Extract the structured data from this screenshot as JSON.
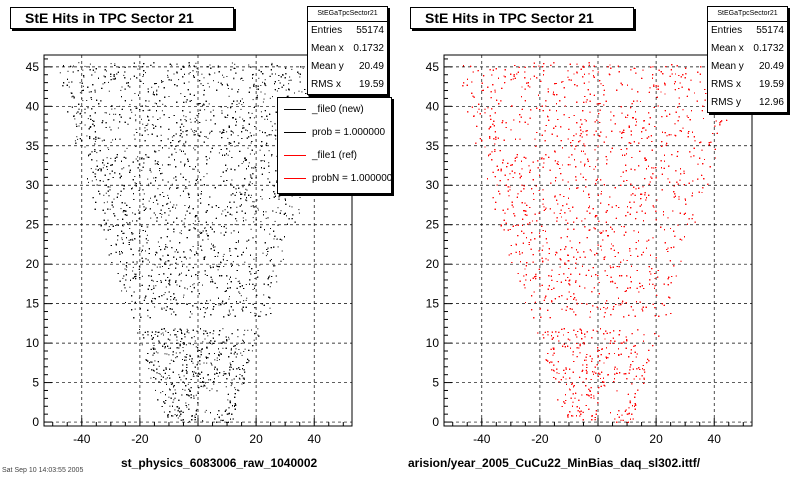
{
  "left": {
    "title": "StE Hits in TPC Sector 21",
    "stats": {
      "name": "StEGaTpcSector21",
      "rows": [
        {
          "label": "Entries",
          "value": "55174"
        },
        {
          "label": "Mean x",
          "value": "0.1732"
        },
        {
          "label": "Mean y",
          "value": "20.49"
        },
        {
          "label": "RMS x",
          "value": "19.59"
        }
      ]
    },
    "legend": [
      {
        "label": "_file0 (new)",
        "color": "#000000"
      },
      {
        "label": "prob = 1.000000",
        "color": "#000000"
      },
      {
        "label": "_file1 (ref)",
        "color": "#ff0000"
      },
      {
        "label": "probN = 1.000000",
        "color": "#ff0000"
      }
    ],
    "filename": "st_physics_6083006_raw_1040002"
  },
  "right": {
    "title": "StE Hits in TPC Sector 21",
    "stats": {
      "name": "StEGaTpcSector21",
      "rows": [
        {
          "label": "Entries",
          "value": "55174"
        },
        {
          "label": "Mean x",
          "value": "0.1732"
        },
        {
          "label": "Mean y",
          "value": "20.49"
        },
        {
          "label": "RMS x",
          "value": "19.59"
        },
        {
          "label": "RMS y",
          "value": "12.96"
        }
      ]
    },
    "filename": "arision/year_2005_CuCu22_MinBias_daq_sl302.ittf/"
  },
  "footer": "Sat Sep 10 14:03:55 2005",
  "chart_data": [
    {
      "type": "scatter",
      "title": "StE Hits in TPC Sector 21",
      "xlim": [
        -53,
        53
      ],
      "ylim": [
        -0.5,
        46.5
      ],
      "xticks": [
        -40,
        -20,
        0,
        20,
        40
      ],
      "yticks": [
        0,
        5,
        10,
        15,
        20,
        25,
        30,
        35,
        40,
        45
      ],
      "grid": true,
      "color": "#000000",
      "series": [
        {
          "name": "_file0 (new)",
          "entries": 55174,
          "mean_x": 0.1732,
          "mean_y": 20.49,
          "rms_x": 19.59
        }
      ]
    },
    {
      "type": "scatter",
      "title": "StE Hits in TPC Sector 21",
      "xlim": [
        -53,
        53
      ],
      "ylim": [
        -0.5,
        46.5
      ],
      "xticks": [
        -40,
        -20,
        0,
        20,
        40
      ],
      "yticks": [
        0,
        5,
        10,
        15,
        20,
        25,
        30,
        35,
        40,
        45
      ],
      "grid": true,
      "color": "#ff0000",
      "series": [
        {
          "name": "_file1 (ref)",
          "entries": 55174,
          "mean_x": 0.1732,
          "mean_y": 20.49,
          "rms_x": 19.59,
          "rms_y": 12.96
        }
      ]
    }
  ]
}
